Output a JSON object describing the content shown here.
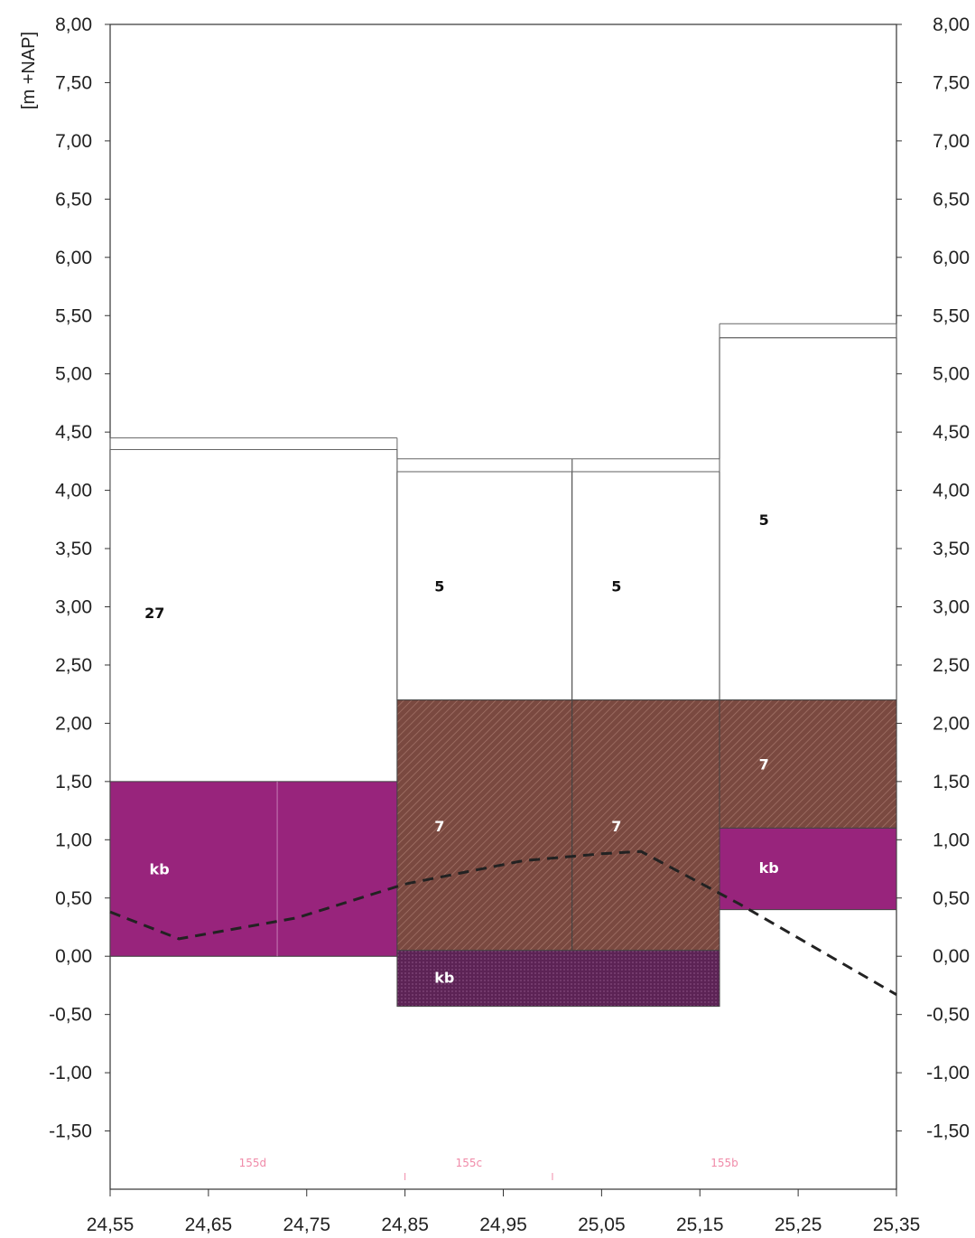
{
  "chart_data": {
    "type": "area",
    "ylabel": "[m +NAP]",
    "xlim": [
      24.55,
      25.35
    ],
    "ylim": [
      -2.0,
      8.0
    ],
    "x_ticks": [
      "24,55",
      "24,65",
      "24,75",
      "24,85",
      "24,95",
      "25,05",
      "25,15",
      "25,25",
      "25,35"
    ],
    "y_ticks": [
      "8,00",
      "7,50",
      "7,00",
      "6,50",
      "6,00",
      "5,50",
      "5,00",
      "4,50",
      "4,00",
      "3,50",
      "3,00",
      "2,50",
      "2,00",
      "1,50",
      "1,00",
      "0,50",
      "0,00",
      "-0,50",
      "-1,00",
      "-1,50"
    ],
    "surface_lines": [
      {
        "x0": 24.55,
        "x1": 24.842,
        "levels": [
          4.45,
          4.35
        ]
      },
      {
        "x0": 24.842,
        "x1": 25.02,
        "levels": [
          4.27,
          4.16
        ]
      },
      {
        "x0": 25.02,
        "x1": 25.17,
        "levels": [
          4.27,
          4.16
        ]
      },
      {
        "x0": 25.17,
        "x1": 25.35,
        "levels": [
          5.43,
          5.31
        ]
      }
    ],
    "blocks": [
      {
        "x0": 24.55,
        "x1": 24.842,
        "y0": 0.0,
        "y1": 4.35,
        "fill": "white",
        "label": "27",
        "label_x": 24.585,
        "label_y": 2.95
      },
      {
        "x0": 24.55,
        "x1": 24.842,
        "y0": 0.0,
        "y1": 1.5,
        "fill": "magenta",
        "label": "kb",
        "label_x": 24.59,
        "label_y": 0.75
      },
      {
        "x0": 24.842,
        "x1": 25.02,
        "y0": 2.2,
        "y1": 4.16,
        "fill": "white",
        "label": "5",
        "label_x": 24.88,
        "label_y": 3.18
      },
      {
        "x0": 24.842,
        "x1": 25.02,
        "y0": 0.05,
        "y1": 2.2,
        "fill": "brown",
        "label": "7",
        "label_x": 24.88,
        "label_y": 1.12
      },
      {
        "x0": 25.02,
        "x1": 25.17,
        "y0": 2.2,
        "y1": 4.16,
        "fill": "white",
        "label": "5",
        "label_x": 25.06,
        "label_y": 3.18
      },
      {
        "x0": 25.02,
        "x1": 25.17,
        "y0": 0.05,
        "y1": 2.2,
        "fill": "brown",
        "label": "7",
        "label_x": 25.06,
        "label_y": 1.12
      },
      {
        "x0": 24.842,
        "x1": 25.17,
        "y0": -0.43,
        "y1": 0.05,
        "fill": "purple",
        "label": "kb",
        "label_x": 24.88,
        "label_y": -0.18
      },
      {
        "x0": 25.17,
        "x1": 25.35,
        "y0": 2.2,
        "y1": 5.31,
        "fill": "white",
        "label": "5",
        "label_x": 25.21,
        "label_y": 3.75
      },
      {
        "x0": 25.17,
        "x1": 25.35,
        "y0": 1.1,
        "y1": 2.2,
        "fill": "brown",
        "label": "7",
        "label_x": 25.21,
        "label_y": 1.65
      },
      {
        "x0": 25.17,
        "x1": 25.35,
        "y0": 0.4,
        "y1": 1.1,
        "fill": "magenta",
        "label": "kb",
        "label_x": 25.21,
        "label_y": 0.76
      }
    ],
    "dashed_line": {
      "x": [
        24.55,
        24.62,
        24.74,
        24.85,
        24.97,
        25.05,
        25.09,
        25.13,
        25.19,
        25.35
      ],
      "y": [
        0.38,
        0.15,
        0.33,
        0.62,
        0.82,
        0.88,
        0.9,
        0.72,
        0.45,
        -0.33
      ]
    },
    "sections": [
      {
        "label": "155d",
        "x": 24.695
      },
      {
        "label": "155c",
        "x": 24.915
      },
      {
        "label": "155b",
        "x": 25.175
      }
    ],
    "colors": {
      "magenta": "#98247c",
      "brown": "#7a4940",
      "purple": "#5c2355",
      "line": "#222222"
    }
  }
}
